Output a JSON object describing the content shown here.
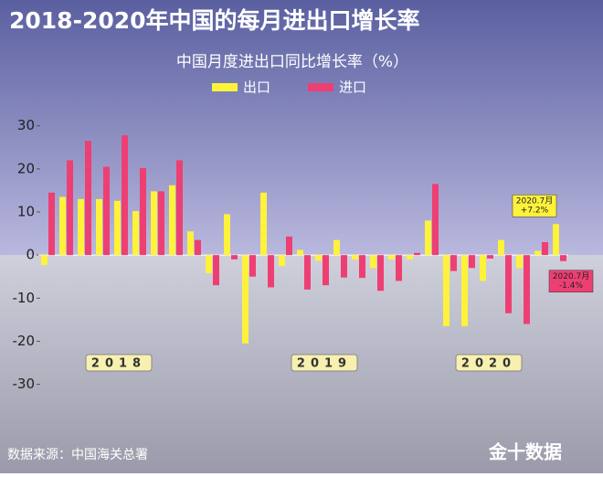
{
  "chart_data": {
    "type": "bar",
    "title": "2018-2020年中国的每月进出口增长率",
    "subtitle": "中国月度进出口同比增长率（%）",
    "categories": [
      null,
      null,
      null,
      null,
      null,
      null,
      null,
      null,
      null,
      null,
      null,
      null,
      null,
      null,
      null,
      null,
      null,
      null,
      null,
      null,
      null,
      null,
      null,
      null,
      null,
      null,
      null,
      null,
      null
    ],
    "series": [
      {
        "name": "出口",
        "color": "#fff23a",
        "values": [
          -2.3,
          13.5,
          13,
          13,
          12.6,
          10.2,
          14.8,
          16.2,
          5.5,
          -4.2,
          9.5,
          -20.5,
          14.5,
          -2.5,
          1.2,
          -1.3,
          3.5,
          -1,
          -3,
          -1,
          -1,
          8,
          -16.5,
          -16.5,
          -6,
          3.5,
          -3,
          1,
          7.2
        ]
      },
      {
        "name": "进口",
        "color": "#ee3f73",
        "values": [
          14.5,
          22,
          26.5,
          20.5,
          27.8,
          20.2,
          14.8,
          22,
          3.5,
          -7,
          -1,
          -5,
          -7.5,
          4.3,
          -8,
          -7,
          -5.2,
          -5.3,
          -8.3,
          -6,
          0.5,
          16.5,
          -3.7,
          -3,
          -0.8,
          -13.5,
          -16,
          3,
          -1.4
        ]
      }
    ],
    "ylim": [
      -32,
      38
    ],
    "yticks": [
      -30,
      -20,
      -10,
      0,
      10,
      20,
      30
    ],
    "year_labels": [
      "2018",
      "2019",
      "2020"
    ],
    "annotations": [
      {
        "lines": [
          "2020.7月",
          "+7.2%"
        ],
        "series": 0
      },
      {
        "lines": [
          "2020.7月",
          "-1.4%"
        ],
        "series": 1
      }
    ],
    "source": "数据来源：中国海关总署",
    "logo": "金十数据"
  }
}
